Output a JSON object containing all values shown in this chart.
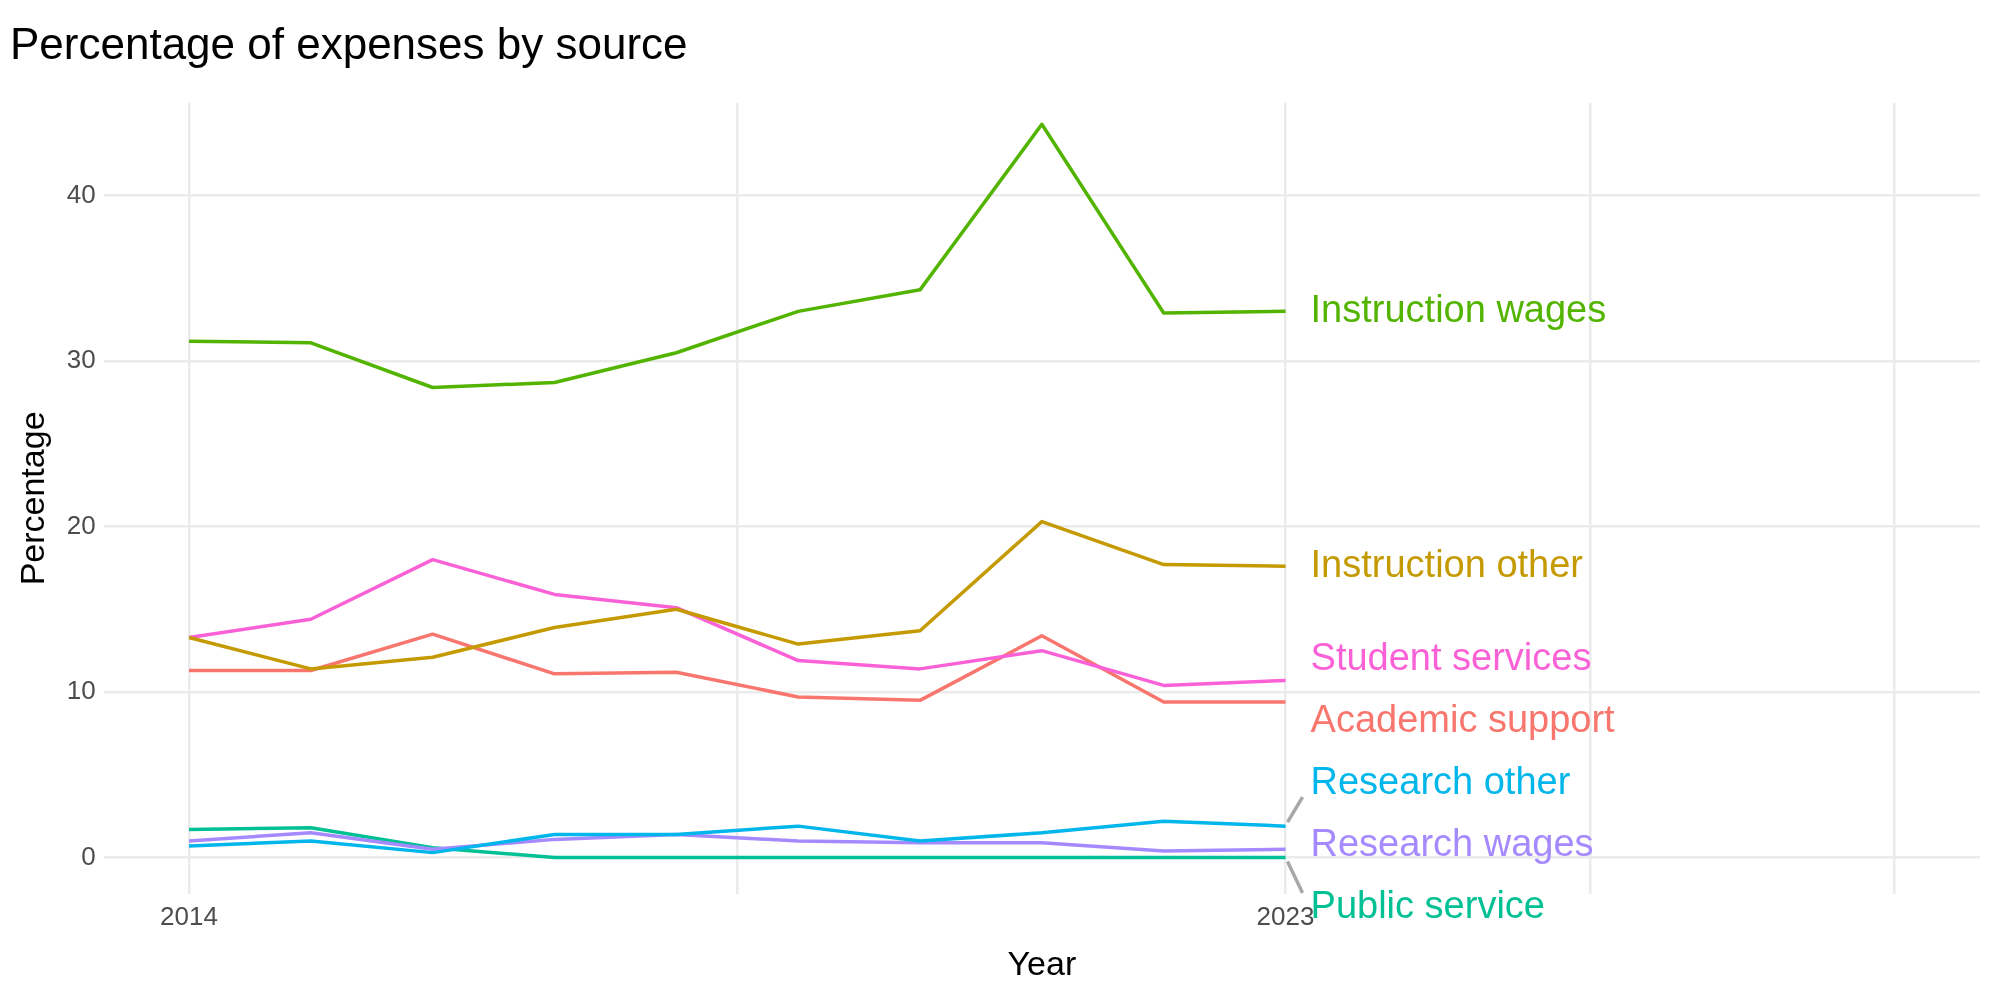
{
  "chart_data": {
    "type": "line",
    "title": "Percentage of expenses by source",
    "xlabel": "Year",
    "ylabel": "Percentage",
    "x": [
      2014,
      2015,
      2016,
      2017,
      2018,
      2019,
      2020,
      2021,
      2022,
      2023
    ],
    "xlim": [
      2013.3,
      2028.7
    ],
    "xticks": [
      2014,
      {
        "value": 2018.5,
        "label": null
      },
      2023,
      {
        "value": 2025.5,
        "label": null
      },
      {
        "value": 2028,
        "label": null
      }
    ],
    "ylim": [
      -2.2,
      45.6
    ],
    "yticks": [
      0,
      10,
      20,
      30,
      40
    ],
    "grid": true,
    "legend": false,
    "marker": "none",
    "line_style": "solid",
    "series": [
      {
        "name": "Instruction wages",
        "color": "#53b400",
        "values": [
          31.2,
          31.1,
          28.4,
          28.7,
          30.5,
          33.0,
          34.3,
          44.3,
          32.9,
          33.0
        ]
      },
      {
        "name": "Instruction other",
        "color": "#c49a00",
        "values": [
          13.3,
          11.4,
          12.1,
          13.9,
          15.0,
          12.9,
          13.7,
          20.3,
          17.7,
          17.6
        ]
      },
      {
        "name": "Student services",
        "color": "#fb61d7",
        "values": [
          13.3,
          14.4,
          18.0,
          15.9,
          15.1,
          11.9,
          11.4,
          12.5,
          10.4,
          10.7
        ]
      },
      {
        "name": "Academic support",
        "color": "#f8766d",
        "values": [
          11.3,
          11.3,
          13.5,
          11.1,
          11.2,
          9.7,
          9.5,
          13.4,
          9.4,
          9.4
        ]
      },
      {
        "name": "Research other",
        "color": "#00b6eb",
        "values": [
          0.7,
          1.0,
          0.3,
          1.4,
          1.4,
          1.9,
          1.0,
          1.5,
          2.2,
          1.9
        ]
      },
      {
        "name": "Research wages",
        "color": "#a58aff",
        "values": [
          1.0,
          1.5,
          0.5,
          1.1,
          1.4,
          1.0,
          0.9,
          0.9,
          0.4,
          0.5
        ]
      },
      {
        "name": "Public service",
        "color": "#00c094",
        "values": [
          1.7,
          1.8,
          0.6,
          0.0,
          0.0,
          0.0,
          0.0,
          0.0,
          0.0,
          0.0
        ]
      }
    ]
  }
}
